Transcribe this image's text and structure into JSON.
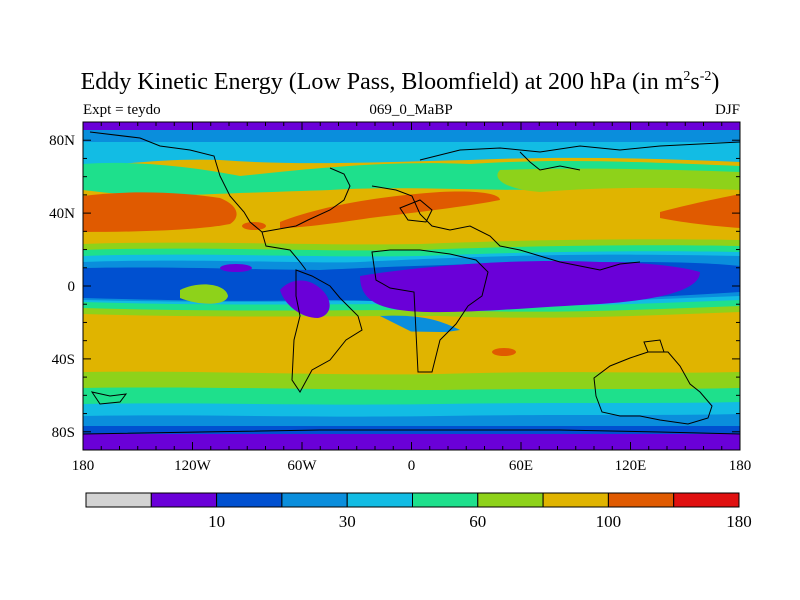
{
  "title": {
    "main": "Eddy Kinetic Energy (Low Pass, Bloomfield) at 200 hPa (in m",
    "sup1": "2",
    "mid": "s",
    "sup2": "-2",
    "end": ")"
  },
  "subtitle": {
    "left": "Expt = teydo",
    "center": "069_0_MaBP",
    "right": "DJF"
  },
  "map": {
    "lon_range": [
      -180,
      180
    ],
    "lat_range": [
      -90,
      90
    ],
    "x_ticks": [
      {
        "value": -180,
        "label": "180"
      },
      {
        "value": -120,
        "label": "120W"
      },
      {
        "value": -60,
        "label": "60W"
      },
      {
        "value": 0,
        "label": "0"
      },
      {
        "value": 60,
        "label": "60E"
      },
      {
        "value": 120,
        "label": "120E"
      },
      {
        "value": 180,
        "label": "180"
      }
    ],
    "y_ticks": [
      {
        "value": 80,
        "label": "80N"
      },
      {
        "value": 40,
        "label": "40N"
      },
      {
        "value": 0,
        "label": "0"
      },
      {
        "value": -40,
        "label": "40S"
      },
      {
        "value": -80,
        "label": "80S"
      }
    ]
  },
  "colorbar": {
    "colors": [
      "#d3d3d3",
      "#6a00d8",
      "#0050d0",
      "#0a8edc",
      "#12bce4",
      "#1ee08c",
      "#8ed21a",
      "#e0b400",
      "#e05a00",
      "#e01010"
    ],
    "labels": [
      {
        "after_box": 1,
        "label": "10"
      },
      {
        "after_box": 3,
        "label": "30"
      },
      {
        "after_box": 5,
        "label": "60"
      },
      {
        "after_box": 7,
        "label": "100"
      },
      {
        "after_box": 9,
        "label": "180"
      }
    ]
  },
  "fields": {
    "band_colors": {
      "purple": "#6a00d8",
      "blue": "#0050d0",
      "mid_blue": "#0a8edc",
      "cyan": "#12bce4",
      "green": "#1ee08c",
      "lime": "#8ed21a",
      "yellow": "#e0b400",
      "orange": "#e05a00",
      "red": "#e01010"
    }
  }
}
